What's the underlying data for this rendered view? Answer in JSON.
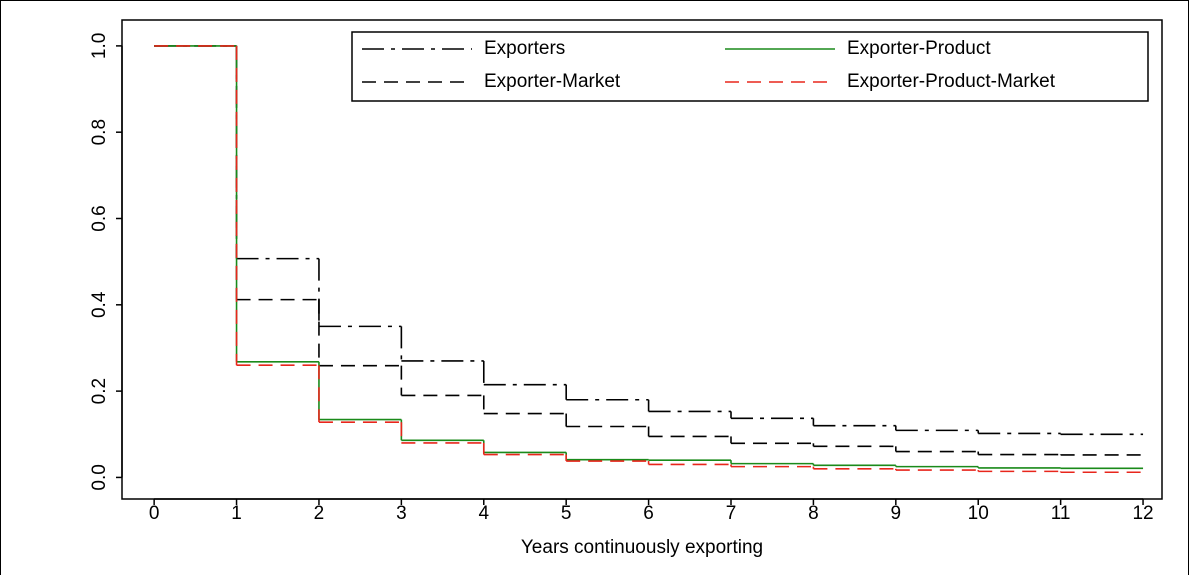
{
  "chart_data": {
    "type": "step",
    "x_label": "Years continuously exporting",
    "x": [
      0,
      1,
      2,
      3,
      4,
      5,
      6,
      7,
      8,
      9,
      10,
      11
    ],
    "series": [
      {
        "name": "Exporters",
        "color": "#000000",
        "dash": "dashdot",
        "values": [
          1.0,
          0.507,
          0.35,
          0.27,
          0.215,
          0.18,
          0.153,
          0.137,
          0.12,
          0.109,
          0.102,
          0.1
        ]
      },
      {
        "name": "Exporter-Market",
        "color": "#000000",
        "dash": "dashed",
        "values": [
          1.0,
          0.412,
          0.259,
          0.19,
          0.148,
          0.118,
          0.095,
          0.079,
          0.072,
          0.06,
          0.053,
          0.052
        ]
      },
      {
        "name": "Exporter-Product",
        "color": "#1a8a1a",
        "dash": "solid",
        "values": [
          1.0,
          0.268,
          0.134,
          0.086,
          0.058,
          0.041,
          0.04,
          0.032,
          0.028,
          0.025,
          0.022,
          0.021
        ]
      },
      {
        "name": "Exporter-Product-Market",
        "color": "#e8261c",
        "dash": "dashed",
        "values": [
          1.0,
          0.26,
          0.128,
          0.08,
          0.053,
          0.038,
          0.03,
          0.025,
          0.02,
          0.017,
          0.014,
          0.012
        ]
      }
    ],
    "xlim": [
      -0.39,
      12.23
    ],
    "ylim": [
      -0.05,
      1.06
    ],
    "xticks": [
      0,
      1,
      2,
      3,
      4,
      5,
      6,
      7,
      8,
      9,
      10,
      11,
      12
    ],
    "yticks": [
      {
        "value": 0,
        "label": "0.0"
      },
      0.2,
      0.4,
      0.6,
      0.8,
      {
        "value": 1,
        "label": "1.0"
      }
    ],
    "legend": "top-right"
  }
}
